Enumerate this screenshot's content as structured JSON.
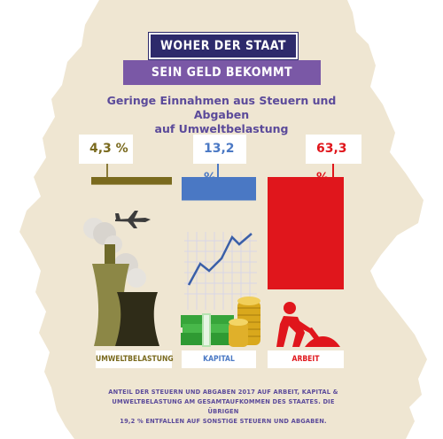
{
  "header": {
    "title_line1": "WOHER DER STAAT",
    "title_line2": "SEIN GELD BEKOMMT",
    "subtitle_line1": "Geringe Einnahmen aus Steuern und Abgaben",
    "subtitle_line2": "auf Umweltbelastung"
  },
  "chart_data": {
    "type": "bar",
    "categories": [
      "UMWELTBELASTUNG",
      "KAPITAL",
      "ARBEIT"
    ],
    "values": [
      4.3,
      13.2,
      63.3
    ],
    "value_labels": [
      "4,3 %",
      "13,2 %",
      "63,3 %"
    ],
    "colors": [
      "#7a6a1e",
      "#4a78c4",
      "#e0161c"
    ],
    "label_colors": [
      "#7a6a1e",
      "#4a78c4",
      "#e0161c"
    ],
    "ylim": [
      0,
      100
    ]
  },
  "footnote": {
    "line1": "ANTEIL DER STEUERN UND ABGABEN 2017 AUF ARBEIT, KAPITAL &",
    "line2": "UMWELTBELASTUNG AM GESAMTAUFKOMMEN DES STAATES. DIE ÜBRIGEN",
    "line3": "19,2 % ENTFALLEN AUF SONSTIGE STEUERN UND ABGABEN."
  },
  "icons": [
    "map-of-germany-icon",
    "airplane-icon",
    "cooling-tower-icon",
    "rising-line-chart-icon",
    "money-stack-icon",
    "coin-stack-icon",
    "worker-shovel-icon"
  ],
  "colors": {
    "map": "#efe6d2",
    "title_dark": "#2d2a6b",
    "title_light": "#7a58a6",
    "text": "#5b4a9a"
  }
}
